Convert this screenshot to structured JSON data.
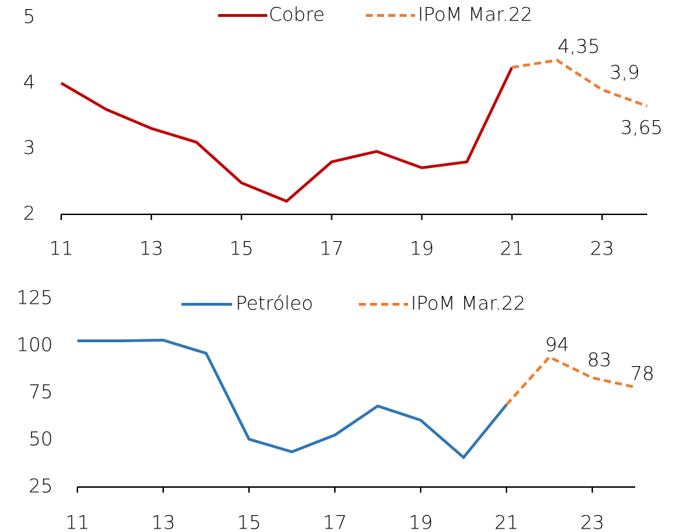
{
  "chart_data": [
    {
      "type": "line",
      "x": [
        11,
        12,
        13,
        14,
        15,
        16,
        17,
        18,
        19,
        20,
        21,
        22,
        23,
        24
      ],
      "xlim": [
        11,
        24
      ],
      "xticks": [
        11,
        13,
        15,
        17,
        19,
        21,
        23
      ],
      "ylim": [
        2,
        5
      ],
      "yticks": [
        2,
        3,
        4,
        5
      ],
      "series": [
        {
          "name": "Cobre",
          "color": "#c00000",
          "dash": false,
          "values": [
            4.0,
            3.6,
            3.31,
            3.1,
            2.48,
            2.2,
            2.8,
            2.96,
            2.71,
            2.8,
            4.24,
            null,
            null,
            null
          ]
        },
        {
          "name": "IPoM Mar.22",
          "color": "#ed7d31",
          "dash": true,
          "values": [
            null,
            null,
            null,
            null,
            null,
            null,
            null,
            null,
            null,
            null,
            4.24,
            4.35,
            3.9,
            3.65
          ],
          "value_labels": [
            null,
            null,
            null,
            null,
            null,
            null,
            null,
            null,
            null,
            null,
            null,
            "4,35",
            "3,9",
            "3,65"
          ]
        }
      ]
    },
    {
      "type": "line",
      "x": [
        11,
        12,
        13,
        14,
        15,
        16,
        17,
        18,
        19,
        20,
        21,
        22,
        23,
        24
      ],
      "xlim": [
        11,
        24
      ],
      "xticks": [
        11,
        13,
        15,
        17,
        19,
        21,
        23
      ],
      "ylim": [
        25,
        125
      ],
      "yticks": [
        25,
        50,
        75,
        100,
        125
      ],
      "series": [
        {
          "name": "Petróleo",
          "color": "#2e75b6",
          "dash": false,
          "values": [
            102.6,
            102.6,
            103,
            96,
            50.4,
            43.7,
            52.6,
            68,
            60.5,
            40.7,
            68.7,
            null,
            null,
            null
          ]
        },
        {
          "name": "IPoM Mar.22",
          "color": "#ed7d31",
          "dash": true,
          "values": [
            null,
            null,
            null,
            null,
            null,
            null,
            null,
            null,
            null,
            null,
            68.7,
            94,
            83,
            78
          ],
          "value_labels": [
            null,
            null,
            null,
            null,
            null,
            null,
            null,
            null,
            null,
            null,
            null,
            "94",
            "83",
            "78"
          ]
        }
      ]
    }
  ]
}
